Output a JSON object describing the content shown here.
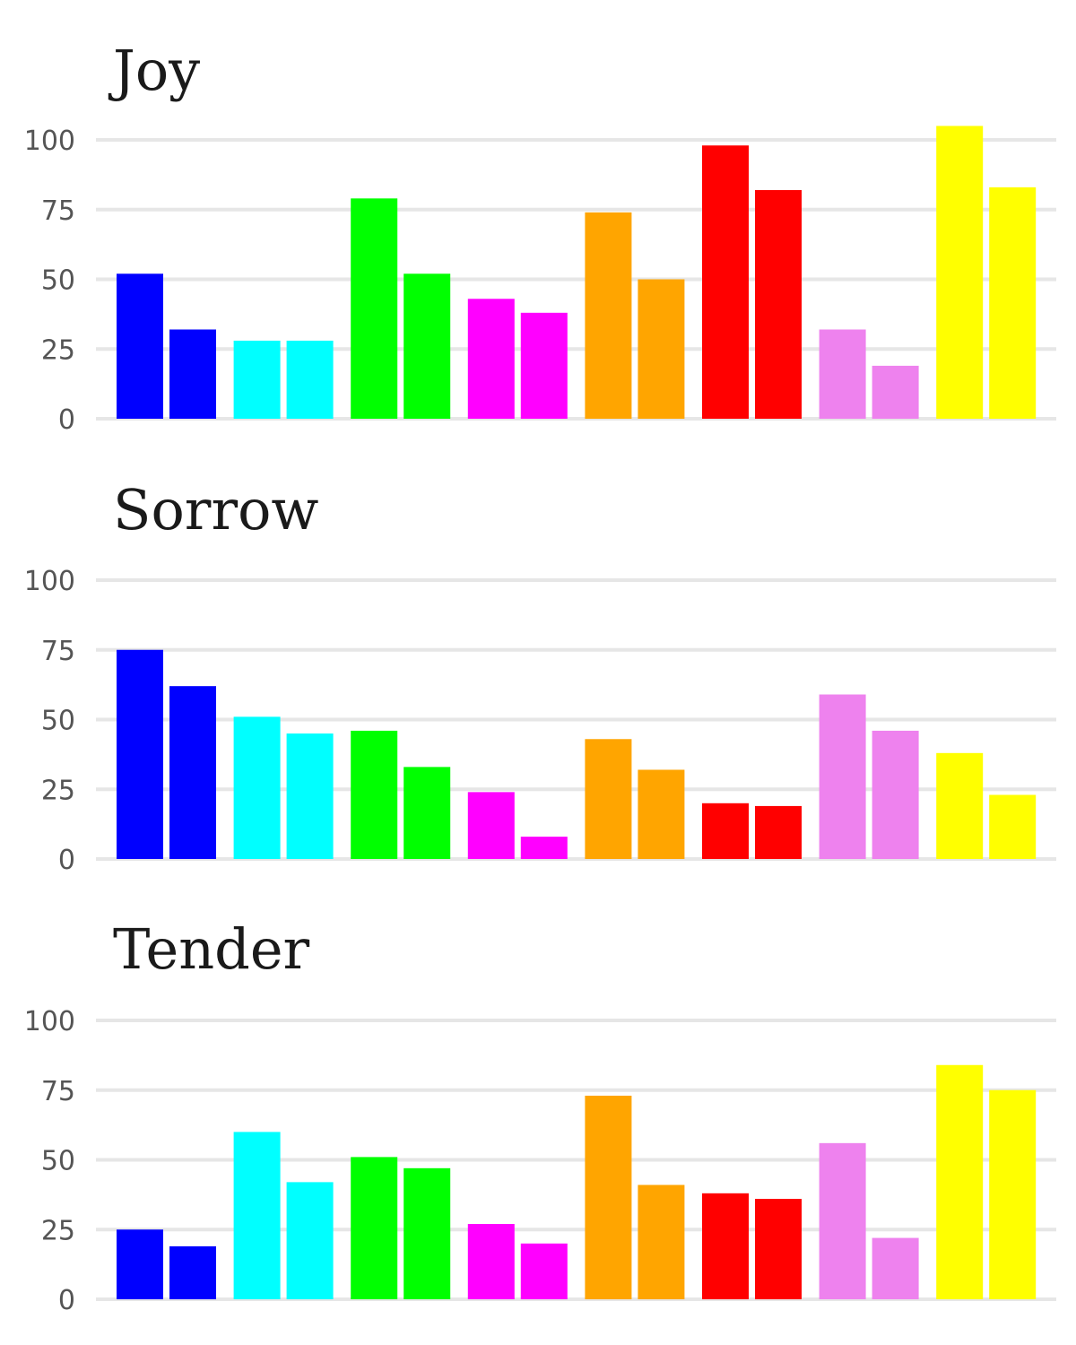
{
  "chart_data": [
    {
      "type": "bar",
      "title": "Joy",
      "xlabel": "",
      "ylabel": "",
      "ylim": [
        0,
        100
      ],
      "yticks": [
        0,
        25,
        50,
        75,
        100
      ],
      "grid": true,
      "legend": "none",
      "categories": [
        "blue",
        "cyan",
        "green",
        "magenta",
        "orange",
        "red",
        "violet",
        "yellow"
      ],
      "colors": [
        "#0000ff",
        "#00ffff",
        "#00ff00",
        "#ff00ff",
        "#ffa500",
        "#ff0000",
        "#ee82ee",
        "#ffff00"
      ],
      "series": [
        {
          "values": [
            52,
            28,
            79,
            43,
            74,
            98,
            32,
            105
          ]
        },
        {
          "values": [
            32,
            28,
            52,
            38,
            50,
            82,
            19,
            83
          ]
        }
      ]
    },
    {
      "type": "bar",
      "title": "Sorrow",
      "xlabel": "",
      "ylabel": "",
      "ylim": [
        0,
        100
      ],
      "yticks": [
        0,
        25,
        50,
        75,
        100
      ],
      "grid": true,
      "legend": "none",
      "categories": [
        "blue",
        "cyan",
        "green",
        "magenta",
        "orange",
        "red",
        "violet",
        "yellow"
      ],
      "colors": [
        "#0000ff",
        "#00ffff",
        "#00ff00",
        "#ff00ff",
        "#ffa500",
        "#ff0000",
        "#ee82ee",
        "#ffff00"
      ],
      "series": [
        {
          "values": [
            75,
            51,
            46,
            24,
            43,
            20,
            59,
            38
          ]
        },
        {
          "values": [
            62,
            45,
            33,
            8,
            32,
            19,
            46,
            23
          ]
        }
      ]
    },
    {
      "type": "bar",
      "title": "Tender",
      "xlabel": "",
      "ylabel": "",
      "ylim": [
        0,
        100
      ],
      "yticks": [
        0,
        25,
        50,
        75,
        100
      ],
      "grid": true,
      "legend": "none",
      "categories": [
        "blue",
        "cyan",
        "green",
        "magenta",
        "orange",
        "red",
        "violet",
        "yellow"
      ],
      "colors": [
        "#0000ff",
        "#00ffff",
        "#00ff00",
        "#ff00ff",
        "#ffa500",
        "#ff0000",
        "#ee82ee",
        "#ffff00"
      ],
      "series": [
        {
          "values": [
            25,
            60,
            51,
            27,
            73,
            38,
            56,
            84
          ]
        },
        {
          "values": [
            19,
            42,
            47,
            20,
            41,
            36,
            22,
            75
          ]
        }
      ]
    }
  ]
}
